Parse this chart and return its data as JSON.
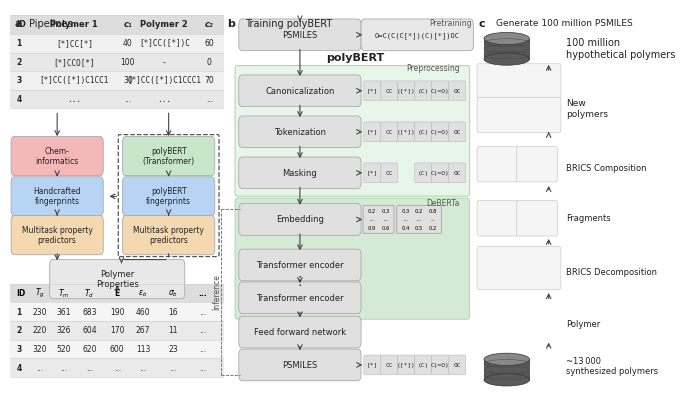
{
  "bg_color": "#ffffff",
  "panel_a": {
    "title": "a",
    "title_text": "Pipelines",
    "table1_col_labels": [
      "ID",
      "Polymer 1",
      "c₁",
      "Polymer 2",
      "c₂"
    ],
    "table1_rows": [
      [
        "1",
        "[*]CC[*]",
        "40",
        "[*]CC([*])C",
        "60"
      ],
      [
        "2",
        "[*]CCO[*]",
        "100",
        "-",
        "0"
      ],
      [
        "3",
        "[*]CC([*])C1CC1",
        "30",
        "[*]CC([*])C1CCC1",
        "70"
      ],
      [
        "4",
        "...",
        "...",
        "...",
        "..."
      ]
    ],
    "table2_col_labels": [
      "ID",
      "T_g",
      "T_m",
      "T_d",
      "E",
      "eps_b",
      "sig_b",
      "..."
    ],
    "table2_rows": [
      [
        "1",
        "230",
        "361",
        "683",
        "190",
        "460",
        "16",
        "..."
      ],
      [
        "2",
        "220",
        "326",
        "604",
        "170",
        "267",
        "11",
        "..."
      ],
      [
        "3",
        "320",
        "520",
        "620",
        "600",
        "113",
        "23",
        "..."
      ],
      [
        "4",
        "...",
        "...",
        "...",
        "...",
        "...",
        "...",
        "..."
      ]
    ],
    "box_chem_color": "#f4b8b8",
    "box_hand_color": "#b8d4f4",
    "box_multi_color": "#f4d8b0",
    "box_polybert_color": "#c8e6c9",
    "box_prop_color": "#e8e8e8"
  },
  "panel_b": {
    "title": "b",
    "title_text": "Training polyBERT",
    "pretraining_text": "Pretraining",
    "inference_text": "Inference",
    "preprocessing_text": "Preprocessing",
    "deberta_text": "DeBERTa",
    "polybert_text": "polyBERT",
    "psmiles_example": "O=C(C(C[*])(C)[*])OC",
    "box_color": "#e0e0e0",
    "prep_color": "#e8f5e9",
    "prep_border": "#a5d6a7",
    "deberta_color": "#d5ead5",
    "deberta_border": "#a5d6a7",
    "tokens_normal": [
      "[*]",
      "CC",
      "([*])",
      "(C)",
      "C(=O)",
      "OC"
    ],
    "tokens_masked": [
      "[*]",
      "CC",
      null,
      "(C)",
      "C(=O)",
      "OC"
    ],
    "mat1": [
      [
        "0.2",
        "0.3"
      ],
      [
        "...",
        "..."
      ],
      [
        "0.9",
        "0.6"
      ]
    ],
    "mat2": [
      [
        "0.3",
        "0.2",
        "0.8"
      ],
      [
        "...",
        "...",
        "..."
      ],
      [
        "0.4",
        "0.5",
        "0.2"
      ]
    ]
  },
  "panel_c": {
    "title": "c",
    "title_text": "Generate 100 million PSMILES",
    "label_100m": "100 million\nhypothetical polymers",
    "label_new": "New\npolymers",
    "label_brics_comp": "BRICS Composition",
    "label_fragments": "Fragments",
    "label_brics_decomp": "BRICS Decomposition",
    "label_polymer": "Polymer",
    "label_13k": "~13 000\nsynthesized polymers",
    "cyl_color": "#555555",
    "cyl_top_color": "#888888",
    "struct_color": "#f5f5f5",
    "struct_border": "#cccccc"
  }
}
